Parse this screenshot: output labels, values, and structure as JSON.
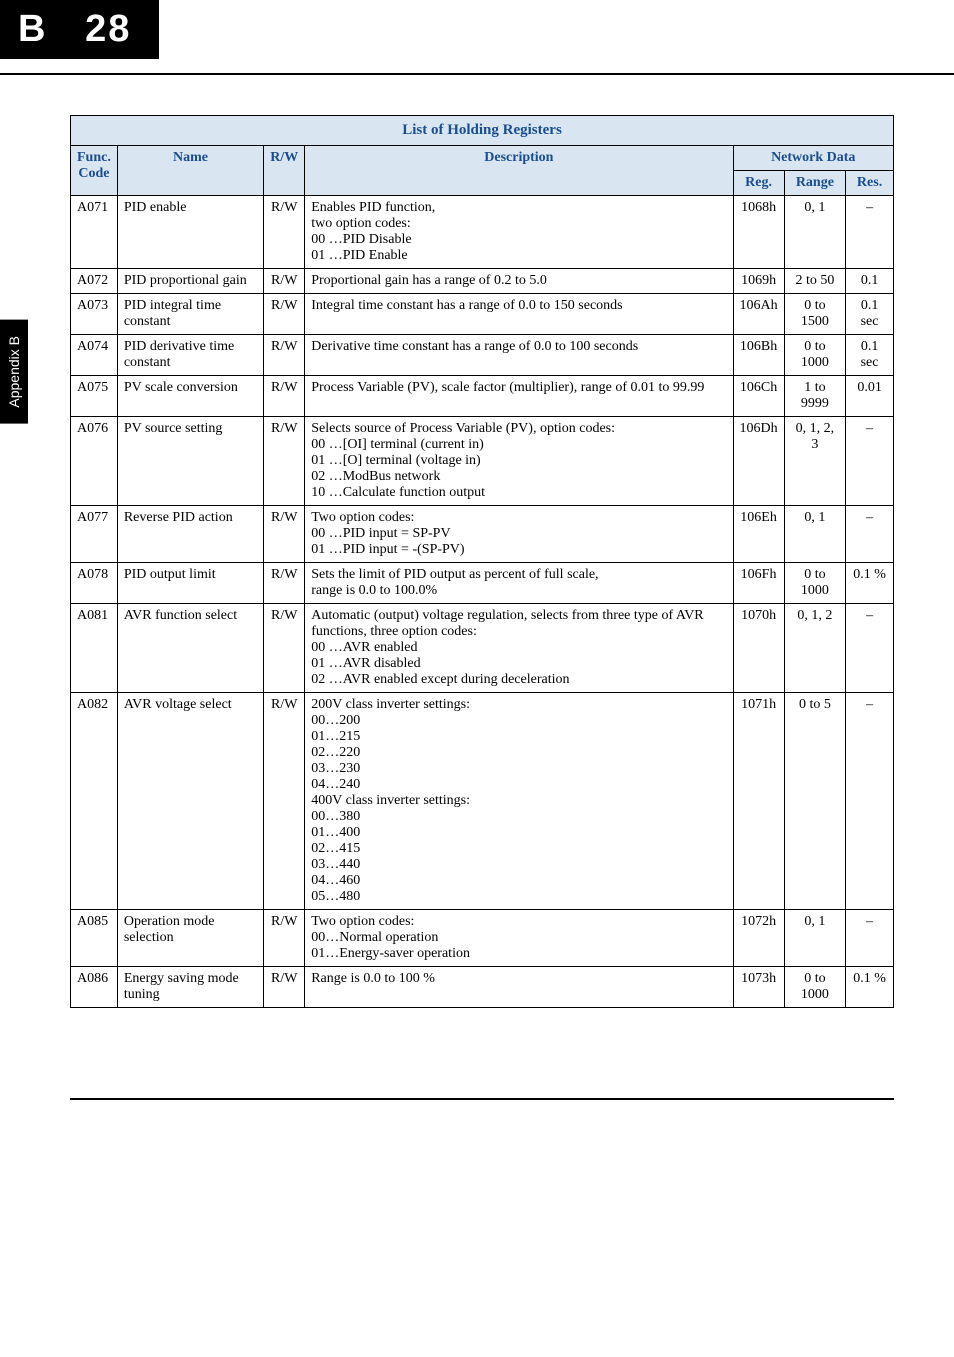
{
  "header": {
    "chapter": "B",
    "page_num": "28"
  },
  "side_tab": "Appendix B",
  "table": {
    "title": "List of Holding Registers",
    "columns": {
      "func": "Func.\nCode",
      "name": "Name",
      "rw": "R/W",
      "desc": "Description",
      "net": "Network Data",
      "reg": "Reg.",
      "range": "Range",
      "res": "Res."
    },
    "rows": [
      {
        "func": "A071",
        "name": "PID enable",
        "rw": "R/W",
        "desc": "Enables PID function,\ntwo option codes:\n00  …PID Disable\n01  …PID Enable",
        "reg": "1068h",
        "range": "0, 1",
        "res": "–"
      },
      {
        "func": "A072",
        "name": "PID proportional gain",
        "rw": "R/W",
        "desc": "Proportional gain has a range of 0.2 to 5.0",
        "reg": "1069h",
        "range": "2 to 50",
        "res": "0.1"
      },
      {
        "func": "A073",
        "name": "PID integral time constant",
        "rw": "R/W",
        "desc": "Integral time constant has a range of 0.0 to 150 seconds",
        "reg": "106Ah",
        "range": "0 to 1500",
        "res": "0.1 sec"
      },
      {
        "func": "A074",
        "name": "PID derivative time constant",
        "rw": "R/W",
        "desc": "Derivative time constant has a range of 0.0 to 100 seconds",
        "reg": "106Bh",
        "range": "0 to 1000",
        "res": "0.1 sec"
      },
      {
        "func": "A075",
        "name": "PV scale conversion",
        "rw": "R/W",
        "desc": "Process Variable (PV), scale factor (multiplier), range of 0.01 to 99.99",
        "reg": "106Ch",
        "range": "1 to 9999",
        "res": "0.01"
      },
      {
        "func": "A076",
        "name": "PV source setting",
        "rw": "R/W",
        "desc": "Selects source of Process Variable (PV), option codes:\n00  …[OI] terminal (current in)\n01  …[O] terminal (voltage in)\n02  …ModBus network\n10  …Calculate function output",
        "reg": "106Dh",
        "range": "0, 1, 2, 3",
        "res": "–"
      },
      {
        "func": "A077",
        "name": "Reverse PID action",
        "rw": "R/W",
        "desc": "Two option codes:\n00  …PID input = SP-PV\n01  …PID input = -(SP-PV)",
        "reg": "106Eh",
        "range": "0, 1",
        "res": "–"
      },
      {
        "func": "A078",
        "name": "PID output limit",
        "rw": "R/W",
        "desc": "Sets the limit of PID output as percent of full scale,\nrange is 0.0 to 100.0%",
        "reg": "106Fh",
        "range": "0 to 1000",
        "res": "0.1 %"
      },
      {
        "func": "A081",
        "name": "AVR function select",
        "rw": "R/W",
        "desc": "Automatic (output) voltage regulation, selects from three type of AVR functions, three option codes:\n00  …AVR enabled\n01  …AVR disabled\n02  …AVR enabled except during deceleration",
        "reg": "1070h",
        "range": "0, 1, 2",
        "res": "–"
      },
      {
        "func": "A082",
        "name": "AVR voltage select",
        "rw": "R/W",
        "desc": "200V class inverter settings:\n00…200\n01…215\n02…220\n03…230\n04…240\n400V class inverter settings:\n00…380\n01…400\n02…415\n03…440\n04…460\n05…480",
        "reg": "1071h",
        "range": "0 to 5",
        "res": "–"
      },
      {
        "func": "A085",
        "name": "Operation mode selection",
        "rw": "R/W",
        "desc": "Two option codes:\n00…Normal operation\n01…Energy-saver operation",
        "reg": "1072h",
        "range": "0, 1",
        "res": "–"
      },
      {
        "func": "A086",
        "name": "Energy saving mode tuning",
        "rw": "R/W",
        "desc": "Range is 0.0 to 100 %",
        "reg": "1073h",
        "range": "0 to 1000",
        "res": "0.1 %"
      }
    ]
  }
}
